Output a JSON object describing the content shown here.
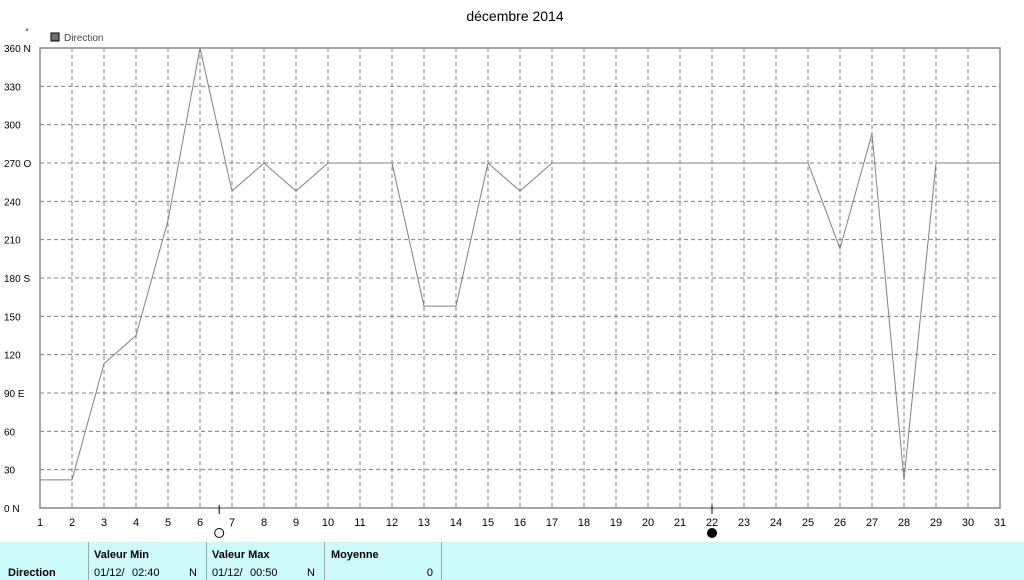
{
  "chart_data": {
    "type": "line",
    "title": "décembre 2014",
    "ylabel": "°",
    "legend": {
      "label": "Direction",
      "color": "#707070",
      "placement": "top-left"
    },
    "x": [
      1,
      2,
      3,
      4,
      5,
      6,
      7,
      8,
      9,
      10,
      11,
      12,
      13,
      14,
      15,
      16,
      17,
      18,
      19,
      20,
      21,
      22,
      23,
      24,
      25,
      26,
      27,
      28,
      29,
      30,
      31
    ],
    "series": [
      {
        "name": "Direction",
        "color": "#808080",
        "values": [
          22,
          22,
          113,
          135,
          225,
          360,
          248,
          270,
          248,
          270,
          270,
          270,
          158,
          158,
          270,
          248,
          270,
          270,
          270,
          270,
          270,
          270,
          270,
          270,
          270,
          203,
          293,
          22,
          270,
          270,
          270
        ]
      }
    ],
    "xlim": [
      1,
      31
    ],
    "ylim": [
      0,
      360
    ],
    "yticks": [
      {
        "value": 0,
        "label": "0  N"
      },
      {
        "value": 30,
        "label": "30"
      },
      {
        "value": 60,
        "label": "60"
      },
      {
        "value": 90,
        "label": "90  E"
      },
      {
        "value": 120,
        "label": "120"
      },
      {
        "value": 150,
        "label": "150"
      },
      {
        "value": 180,
        "label": "180 S"
      },
      {
        "value": 210,
        "label": "210"
      },
      {
        "value": 240,
        "label": "240"
      },
      {
        "value": 270,
        "label": "270 O"
      },
      {
        "value": 300,
        "label": "300"
      },
      {
        "value": 330,
        "label": "330"
      },
      {
        "value": 360,
        "label": "360 N"
      }
    ],
    "grid": true,
    "moon_phases": [
      {
        "x": 6.6,
        "phase": "full"
      },
      {
        "x": 22.0,
        "phase": "new"
      }
    ]
  },
  "stats": {
    "row_label": "Direction",
    "min": {
      "header": "Valeur Min",
      "date": "01/12/",
      "time": "02:40",
      "value": "N"
    },
    "max": {
      "header": "Valeur Max",
      "date": "01/12/",
      "time": "00:50",
      "value": "N"
    },
    "avg": {
      "header": "Moyenne",
      "value": "0"
    }
  }
}
